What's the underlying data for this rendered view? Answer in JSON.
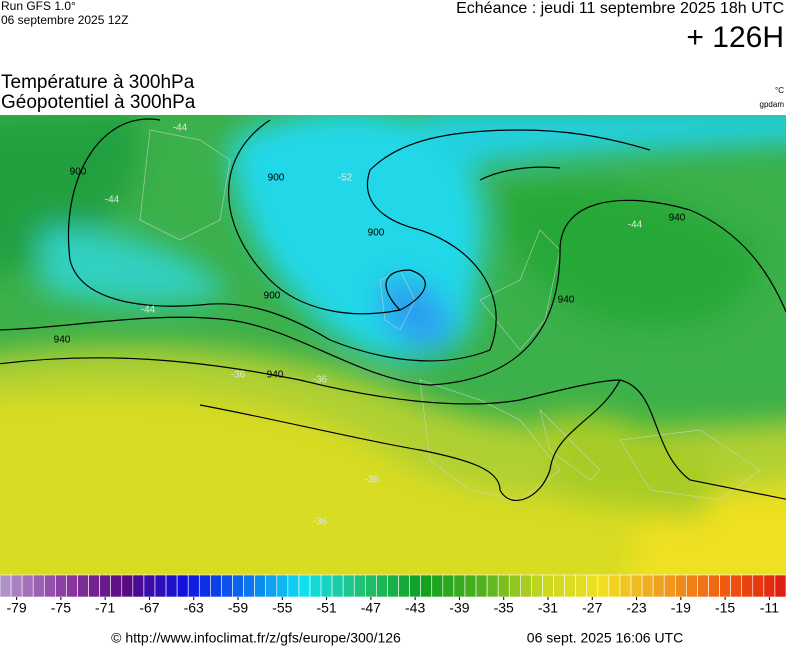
{
  "header": {
    "run": "Run GFS 1.0°",
    "run_date": "06 septembre 2025 12Z",
    "valid": "Echéance : jeudi 11 septembre 2025 18h UTC",
    "lead": "+ 126H"
  },
  "titles": {
    "line1": "Température à 300hPa",
    "line2": "Géopotentiel à 300hPa",
    "unit1": "°C",
    "unit2": "gpdam"
  },
  "map": {
    "contour_labels": [
      "900",
      "900",
      "900",
      "900",
      "940",
      "940",
      "940",
      "940"
    ],
    "isotherm_labels": [
      "-44",
      "-44",
      "-52",
      "-44",
      "-44",
      "-36",
      "-36",
      "-36",
      "-36"
    ]
  },
  "colorbar": {
    "range": [
      -80.5,
      -9.5
    ],
    "ticks": [
      -79,
      -75,
      -71,
      -67,
      -63,
      -59,
      -55,
      -51,
      -47,
      -43,
      -39,
      -35,
      -31,
      -27,
      -23,
      -19,
      -15,
      -11
    ],
    "palette": [
      "#b090c8",
      "#8a3aa0",
      "#5a0a80",
      "#1010e0",
      "#0a6cf0",
      "#10e0f0",
      "#20c070",
      "#10a020",
      "#50b020",
      "#c8d820",
      "#f0e020",
      "#f0a020",
      "#f06010",
      "#e02010"
    ]
  },
  "footer": {
    "url": "© http://www.infoclimat.fr/z/gfs/europe/300/126",
    "date": "06 sept. 2025 16:06 UTC"
  }
}
